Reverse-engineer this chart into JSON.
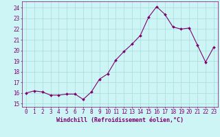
{
  "x": [
    0,
    1,
    2,
    3,
    4,
    5,
    6,
    7,
    8,
    9,
    10,
    11,
    12,
    13,
    14,
    15,
    16,
    17,
    18,
    19,
    20,
    21,
    22,
    23
  ],
  "y": [
    16.0,
    16.2,
    16.1,
    15.8,
    15.8,
    15.9,
    15.9,
    15.4,
    16.1,
    17.3,
    17.8,
    19.1,
    19.9,
    20.6,
    21.4,
    23.1,
    24.1,
    23.4,
    22.2,
    22.0,
    22.1,
    20.5,
    18.9,
    20.3
  ],
  "line_color": "#7B0070",
  "marker": "D",
  "marker_size": 2.0,
  "bg_color": "#cef5f5",
  "grid_color": "#a8dada",
  "xlabel": "Windchill (Refroidissement éolien,°C)",
  "ylabel_ticks": [
    15,
    16,
    17,
    18,
    19,
    20,
    21,
    22,
    23,
    24
  ],
  "ylim": [
    14.7,
    24.6
  ],
  "xlim": [
    -0.5,
    23.5
  ],
  "font_color": "#7B0070",
  "tick_fontsize": 5.5,
  "xlabel_fontsize": 6.0
}
